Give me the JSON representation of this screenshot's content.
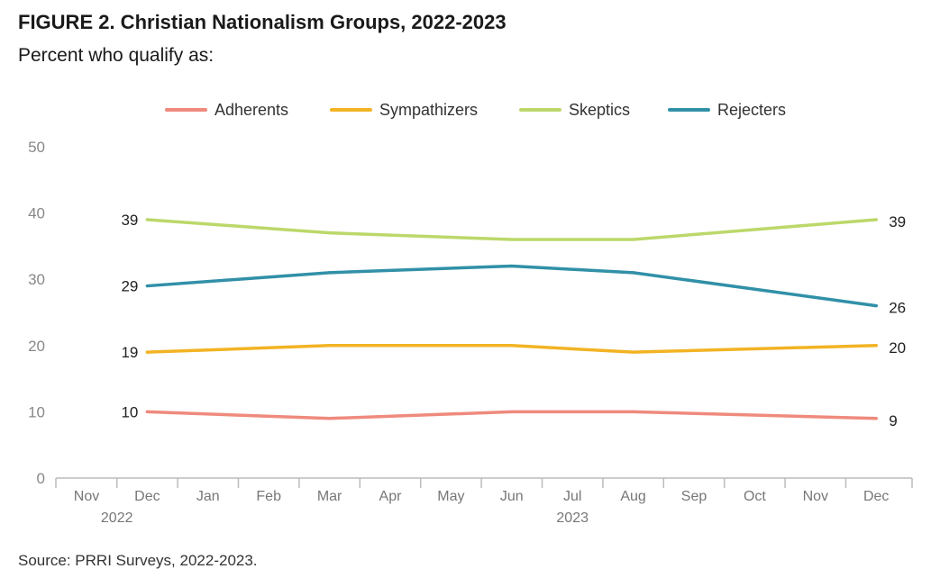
{
  "header": {
    "title": "FIGURE 2. Christian Nationalism Groups, 2022-2023",
    "subtitle": "Percent who qualify as:"
  },
  "footer": {
    "source": "Source: PRRI Surveys, 2022-2023."
  },
  "chart_data": {
    "type": "line",
    "title": "FIGURE 2. Christian Nationalism Groups, 2022-2023",
    "subtitle": "Percent who qualify as:",
    "x": [
      "Nov 2022",
      "Dec 2022",
      "Jan 2023",
      "Feb 2023",
      "Mar 2023",
      "Apr 2023",
      "May 2023",
      "Jun 2023",
      "Jul 2023",
      "Aug 2023",
      "Sep 2023",
      "Oct 2023",
      "Nov 2023",
      "Dec 2023"
    ],
    "tick_labels": [
      "Nov",
      "Dec",
      "Jan",
      "Feb",
      "Mar",
      "Apr",
      "May",
      "Jun",
      "Jul",
      "Aug",
      "Sep",
      "Oct",
      "Nov",
      "Dec"
    ],
    "year_labels": [
      {
        "label": "2022",
        "index": 0.5
      },
      {
        "label": "2023",
        "index": 8.0
      }
    ],
    "ylim": [
      0,
      50
    ],
    "yticks": [
      0,
      10,
      20,
      30,
      40,
      50
    ],
    "grid": false,
    "legend": "top",
    "series": [
      {
        "name": "Adherents",
        "color": "#ef8a7d",
        "points": [
          {
            "x": "Dec 2022",
            "y": 10
          },
          {
            "x": "Mar 2023",
            "y": 9
          },
          {
            "x": "Jun 2023",
            "y": 10
          },
          {
            "x": "Aug 2023",
            "y": 10
          },
          {
            "x": "Dec 2023",
            "y": 9
          }
        ],
        "start_label": "10",
        "end_label": "9"
      },
      {
        "name": "Sympathizers",
        "color": "#f2b324",
        "points": [
          {
            "x": "Dec 2022",
            "y": 19
          },
          {
            "x": "Mar 2023",
            "y": 20
          },
          {
            "x": "Jun 2023",
            "y": 20
          },
          {
            "x": "Aug 2023",
            "y": 19
          },
          {
            "x": "Dec 2023",
            "y": 20
          }
        ],
        "start_label": "19",
        "end_label": "20"
      },
      {
        "name": "Skeptics",
        "color": "#bcd86a",
        "points": [
          {
            "x": "Dec 2022",
            "y": 39
          },
          {
            "x": "Mar 2023",
            "y": 37
          },
          {
            "x": "Jun 2023",
            "y": 36
          },
          {
            "x": "Aug 2023",
            "y": 36
          },
          {
            "x": "Dec 2023",
            "y": 39
          }
        ],
        "start_label": "39",
        "end_label": "39"
      },
      {
        "name": "Rejecters",
        "color": "#3190a8",
        "points": [
          {
            "x": "Dec 2022",
            "y": 29
          },
          {
            "x": "Mar 2023",
            "y": 31
          },
          {
            "x": "Jun 2023",
            "y": 32
          },
          {
            "x": "Aug 2023",
            "y": 31
          },
          {
            "x": "Dec 2023",
            "y": 26
          }
        ],
        "start_label": "29",
        "end_label": "26"
      }
    ]
  }
}
